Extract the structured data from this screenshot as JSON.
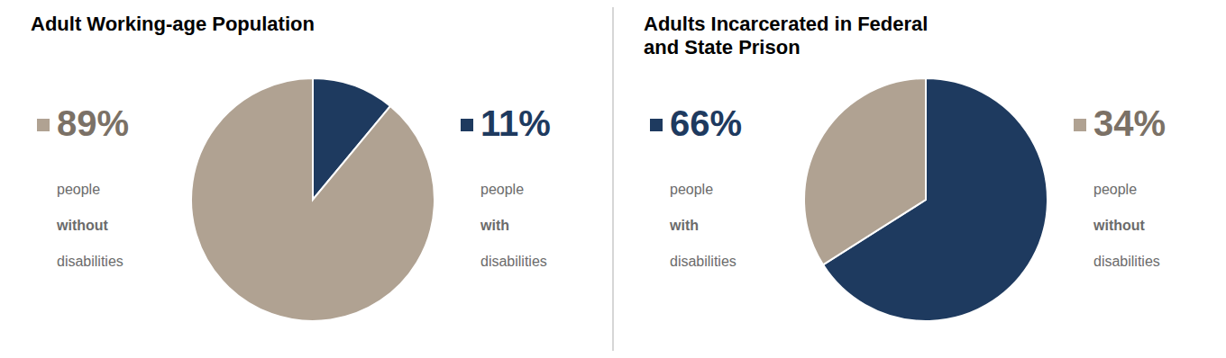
{
  "chart_data": [
    {
      "type": "pie",
      "title": "Adult Working-age Population",
      "categories": [
        "people with disabilities",
        "people without disabilities"
      ],
      "values": [
        11,
        89
      ],
      "value_labels": [
        "11%",
        "89%"
      ],
      "colors": [
        "#1e3a5f",
        "#b0a292"
      ],
      "data_labels": true
    },
    {
      "type": "pie",
      "title": "Adults Incarcerated in Federal\nand State Prison",
      "categories": [
        "people with disabilities",
        "people without disabilities"
      ],
      "values": [
        66,
        34
      ],
      "value_labels": [
        "66%",
        "34%"
      ],
      "colors": [
        "#1e3a5f",
        "#b0a292"
      ],
      "data_labels": true
    }
  ]
}
